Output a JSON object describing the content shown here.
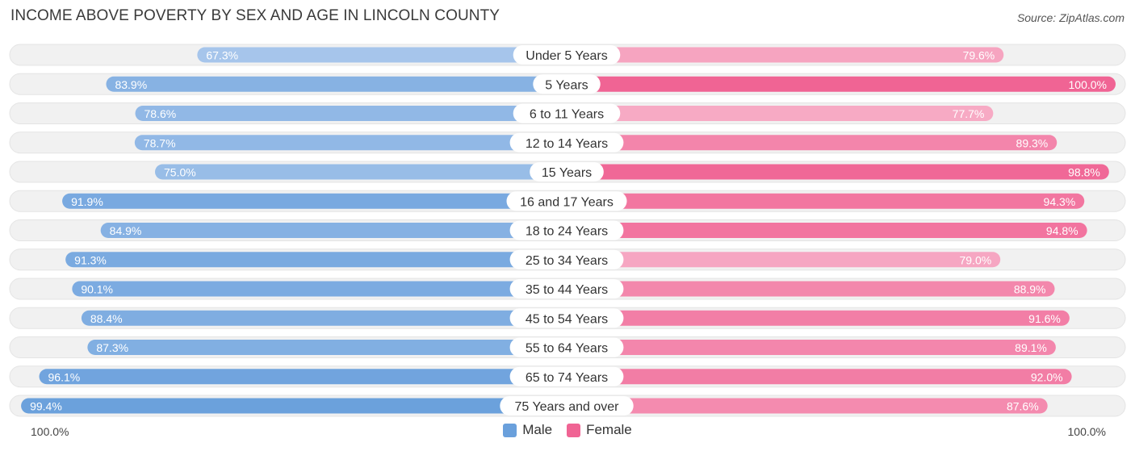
{
  "title": "INCOME ABOVE POVERTY BY SEX AND AGE IN LINCOLN COUNTY",
  "source": "Source: ZipAtlas.com",
  "colors": {
    "male_light": "#aac8ec",
    "male_dark": "#6aa0dc",
    "female_light": "#f7afc8",
    "female_dark": "#f06494",
    "track": "#f1f1f1"
  },
  "legend": {
    "male_label": "Male",
    "female_label": "Female"
  },
  "axis": {
    "left_label": "100.0%",
    "right_label": "100.0%"
  },
  "chart_data": {
    "type": "bar",
    "orientation": "horizontal-diverging",
    "title": "INCOME ABOVE POVERTY BY SEX AND AGE IN LINCOLN COUNTY",
    "xlim": [
      0,
      100
    ],
    "categories": [
      "Under 5 Years",
      "5 Years",
      "6 to 11 Years",
      "12 to 14 Years",
      "15 Years",
      "16 and 17 Years",
      "18 to 24 Years",
      "25 to 34 Years",
      "35 to 44 Years",
      "45 to 54 Years",
      "55 to 64 Years",
      "65 to 74 Years",
      "75 Years and over"
    ],
    "series": [
      {
        "name": "Male",
        "values": [
          67.3,
          83.9,
          78.6,
          78.7,
          75.0,
          91.9,
          84.9,
          91.3,
          90.1,
          88.4,
          87.3,
          96.1,
          99.4
        ],
        "labels": [
          "67.3%",
          "83.9%",
          "78.6%",
          "78.7%",
          "75.0%",
          "91.9%",
          "84.9%",
          "91.3%",
          "90.1%",
          "88.4%",
          "87.3%",
          "96.1%",
          "99.4%"
        ]
      },
      {
        "name": "Female",
        "values": [
          79.6,
          100.0,
          77.7,
          89.3,
          98.8,
          94.3,
          94.8,
          79.0,
          88.9,
          91.6,
          89.1,
          92.0,
          87.6
        ],
        "labels": [
          "79.6%",
          "100.0%",
          "77.7%",
          "89.3%",
          "98.8%",
          "94.3%",
          "94.8%",
          "79.0%",
          "88.9%",
          "91.6%",
          "89.1%",
          "92.0%",
          "87.6%"
        ]
      }
    ],
    "legend_position": "bottom-center"
  }
}
